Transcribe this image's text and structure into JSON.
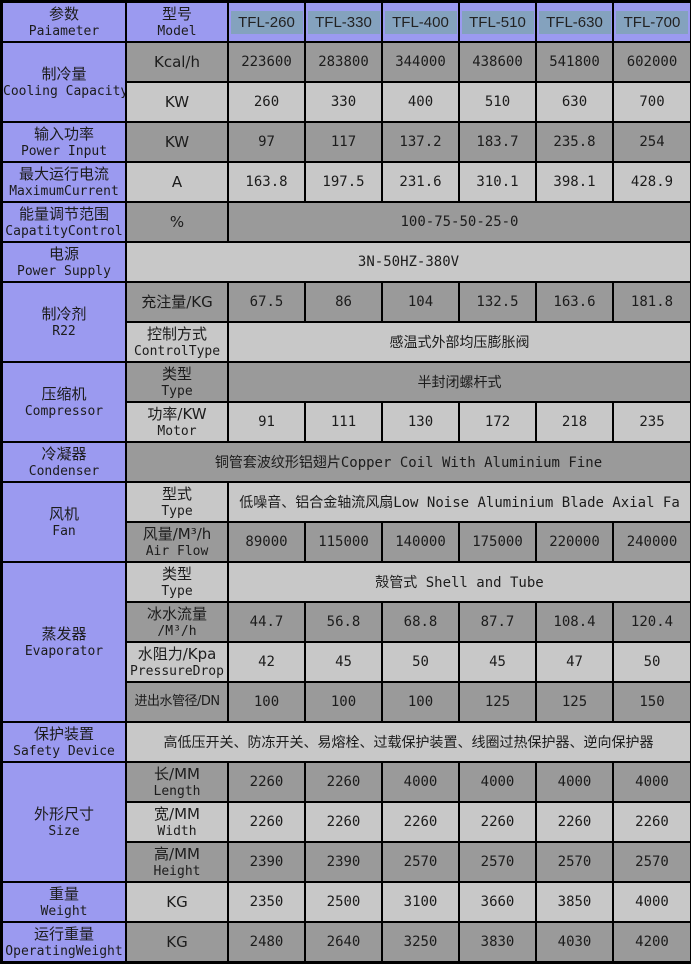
{
  "colors": {
    "header_bg": "#9b9af0",
    "row_dark": "#9a9a9a",
    "row_light": "#c8c8c8",
    "model_highlight": "#84a2be",
    "border": "#000000"
  },
  "header": {
    "param_zh": "参数",
    "param_en": "Paiameter",
    "model_zh": "型号",
    "model_en": "Model",
    "models": [
      "TFL-260",
      "TFL-330",
      "TFL-400",
      "TFL-510",
      "TFL-630",
      "TFL-700"
    ]
  },
  "table": {
    "groups": [
      {
        "zh": "制冷量",
        "en": "Cooling Capacity",
        "rows": [
          {
            "unit_zh": "Kcal/h",
            "shade": "dark",
            "cells": [
              "223600",
              "283800",
              "344000",
              "438600",
              "541800",
              "602000"
            ]
          },
          {
            "unit_zh": "KW",
            "shade": "light",
            "cells": [
              "260",
              "330",
              "400",
              "510",
              "630",
              "700"
            ]
          }
        ]
      },
      {
        "zh": "输入功率",
        "en": "Power Input",
        "rows": [
          {
            "unit_zh": "KW",
            "shade": "dark",
            "cells": [
              "97",
              "117",
              "137.2",
              "183.7",
              "235.8",
              "254"
            ]
          }
        ]
      },
      {
        "zh": "最大运行电流",
        "en": "MaximumCurrent",
        "rows": [
          {
            "unit_zh": "A",
            "shade": "light",
            "cells": [
              "163.8",
              "197.5",
              "231.6",
              "310.1",
              "398.1",
              "428.9"
            ]
          }
        ]
      },
      {
        "zh": "能量调节范围",
        "en": "CapatityControl",
        "rows": [
          {
            "unit_zh": "%",
            "shade": "dark",
            "span": "100-75-50-25-0"
          }
        ]
      },
      {
        "zh": "电源",
        "en": "Power Supply",
        "rows": [
          {
            "shade": "light",
            "full_span": "3N-50HZ-380V"
          }
        ]
      },
      {
        "zh": "制冷剂",
        "en": "R22",
        "rows": [
          {
            "unit_zh": "充注量/KG",
            "shade": "dark",
            "cells": [
              "67.5",
              "86",
              "104",
              "132.5",
              "163.6",
              "181.8"
            ]
          },
          {
            "unit_zh": "控制方式",
            "unit_en": "ControlType",
            "shade": "light",
            "span": "感温式外部均压膨胀阀"
          }
        ]
      },
      {
        "zh": "压缩机",
        "en": "Compressor",
        "rows": [
          {
            "unit_zh": "类型",
            "unit_en": "Type",
            "shade": "dark",
            "span": "半封闭螺杆式"
          },
          {
            "unit_zh": "功率/KW",
            "unit_en": "Motor",
            "shade": "light",
            "cells": [
              "91",
              "111",
              "130",
              "172",
              "218",
              "235"
            ]
          }
        ]
      },
      {
        "zh": "冷凝器",
        "en": "Condenser",
        "rows": [
          {
            "shade": "dark",
            "full_span": "铜管套波纹形铝翅片Copper Coil With Aluminium Fine"
          }
        ]
      },
      {
        "zh": "风机",
        "en": "Fan",
        "rows": [
          {
            "unit_zh": "型式",
            "unit_en": "Type",
            "shade": "light",
            "span": "低噪音、铝合金轴流风扇Low Noise Aluminium Blade Axial Fa"
          },
          {
            "unit_zh": "风量/M³/h",
            "unit_en": "Air Flow",
            "shade": "dark",
            "cells": [
              "89000",
              "115000",
              "140000",
              "175000",
              "220000",
              "240000"
            ]
          }
        ]
      },
      {
        "zh": "蒸发器",
        "en": "Evaporator",
        "rows": [
          {
            "unit_zh": "类型",
            "unit_en": "Type",
            "shade": "light",
            "span": "殻管式  Shell and Tube"
          },
          {
            "unit_zh": "冰水流量",
            "unit_en": "/M³/h",
            "shade": "dark",
            "cells": [
              "44.7",
              "56.8",
              "68.8",
              "87.7",
              "108.4",
              "120.4"
            ]
          },
          {
            "unit_zh": "水阻力/Kpa",
            "unit_en": "PressureDrop",
            "shade": "light",
            "cells": [
              "42",
              "45",
              "50",
              "45",
              "47",
              "50"
            ]
          },
          {
            "unit_zh": "进出水管径/DN",
            "shade": "dark",
            "tight": true,
            "cells": [
              "100",
              "100",
              "100",
              "125",
              "125",
              "150"
            ]
          }
        ]
      },
      {
        "zh": "保护装置",
        "en": "Safety Device",
        "rows": [
          {
            "shade": "light",
            "full_span": "高低压开关、防冻开关、易熔栓、过载保护装置、线圈过热保护器、逆向保护器"
          }
        ]
      },
      {
        "zh": "外形尺寸",
        "en": "Size",
        "rows": [
          {
            "unit_zh": "长/MM",
            "unit_en": "Length",
            "shade": "dark",
            "cells": [
              "2260",
              "2260",
              "4000",
              "4000",
              "4000",
              "4000"
            ]
          },
          {
            "unit_zh": "宽/MM",
            "unit_en": "Width",
            "shade": "light",
            "cells": [
              "2260",
              "2260",
              "2260",
              "2260",
              "2260",
              "2260"
            ]
          },
          {
            "unit_zh": "高/MM",
            "unit_en": "Height",
            "shade": "dark",
            "cells": [
              "2390",
              "2390",
              "2570",
              "2570",
              "2570",
              "2570"
            ]
          }
        ]
      },
      {
        "zh": "重量",
        "en": "Weight",
        "rows": [
          {
            "unit_zh": "KG",
            "shade": "light",
            "cells": [
              "2350",
              "2500",
              "3100",
              "3660",
              "3850",
              "4000"
            ]
          }
        ]
      },
      {
        "zh": "运行重量",
        "en": "OperatingWeight",
        "rows": [
          {
            "unit_zh": "KG",
            "shade": "dark",
            "cells": [
              "2480",
              "2640",
              "3250",
              "3830",
              "4030",
              "4200"
            ]
          }
        ]
      }
    ]
  }
}
